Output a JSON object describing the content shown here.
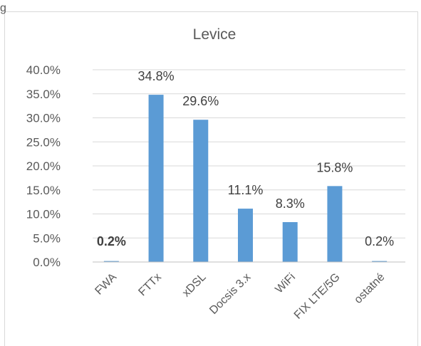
{
  "chart_data": {
    "type": "bar",
    "title": "Levice",
    "xlabel": "",
    "ylabel": "",
    "categories": [
      "FWA",
      "FTTx",
      "xDSL",
      "Docsis 3.x",
      "WiFi",
      "FIX LTE/5G",
      "ostatné"
    ],
    "values": [
      0.2,
      34.8,
      29.6,
      11.1,
      8.3,
      15.8,
      0.2
    ],
    "data_labels": [
      "0.2%",
      "34.8%",
      "29.6%",
      "11.1%",
      "8.3%",
      "15.8%",
      "0.2%"
    ],
    "bold_labels": [
      true,
      false,
      false,
      false,
      false,
      false,
      false
    ],
    "ylim": [
      0,
      40
    ],
    "yticks": [
      0,
      5,
      10,
      15,
      20,
      25,
      30,
      35,
      40
    ],
    "ytick_labels": [
      "0.0%",
      "5.0%",
      "10.0%",
      "15.0%",
      "20.0%",
      "25.0%",
      "30.0%",
      "35.0%",
      "40.0%"
    ],
    "grid": true,
    "legend": "none",
    "bar_color": "#5b9bd5",
    "header_fragment": "g"
  }
}
